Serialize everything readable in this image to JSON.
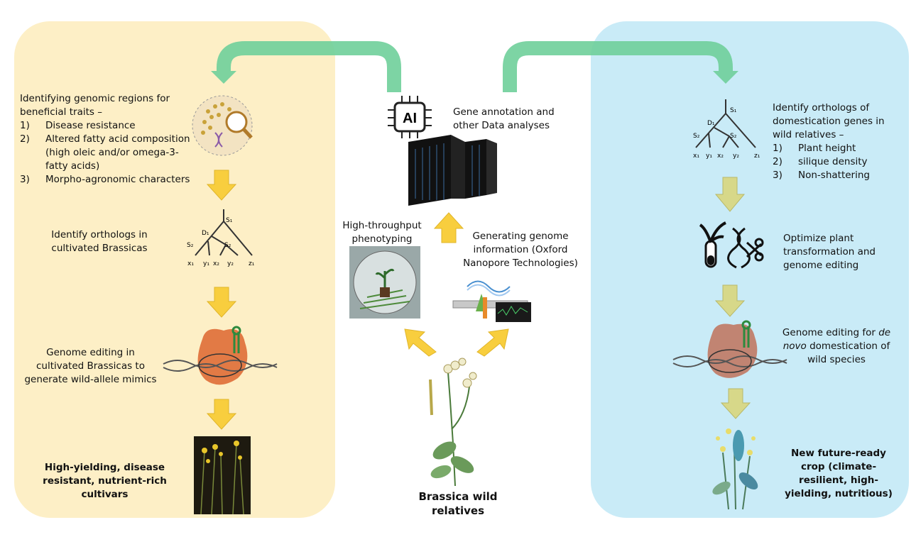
{
  "left": {
    "intro": "Identifying genomic regions for beneficial traits –",
    "traits": [
      {
        "num": "1)",
        "text": "Disease resistance"
      },
      {
        "num": "2)",
        "text": "Altered fatty acid composition (high oleic and/or omega-3-fatty acids)"
      },
      {
        "num": "3)",
        "text": "Morpho-agronomic characters"
      }
    ],
    "orthologs": "Identify orthologs in cultivated Brassicas",
    "editing": "Genome editing in cultivated Brassicas to generate wild-allele mimics",
    "result": "High-yielding, disease resistant, nutrient-rich cultivars"
  },
  "center": {
    "ai_label": "AI",
    "annotation": "Gene annotation and other Data analyses",
    "phenotyping": "High-throughput phenotyping",
    "genome_info": "Generating genome information (Oxford Nanopore Technologies)",
    "wild": "Brassica wild relatives"
  },
  "right": {
    "intro": "Identify orthologs of domestication genes in wild relatives –",
    "traits": [
      {
        "num": "1)",
        "text": "Plant height"
      },
      {
        "num": "2)",
        "text": "silique density"
      },
      {
        "num": "3)",
        "text": "Non-shattering"
      }
    ],
    "optimize": "Optimize plant transformation and genome editing",
    "editing_pre": "Genome editing for ",
    "editing_italic": "de novo",
    "editing_post": " domestication of wild species",
    "result": "New future-ready crop (climate-resilient, high-yielding, nutritious)"
  },
  "tree": {
    "s1": "S₁",
    "s2": "S₂",
    "d1": "D₁",
    "leaves": [
      "x₁",
      "y₁",
      "x₂",
      "y₂",
      "z₁"
    ]
  },
  "colors": {
    "left_panel": "#fdefc6",
    "right_panel": "#c9ebf7",
    "arrow_yellow": "#f8ce3e",
    "arrow_olive": "#d7d889",
    "arrow_green": "#6fcf9a"
  }
}
